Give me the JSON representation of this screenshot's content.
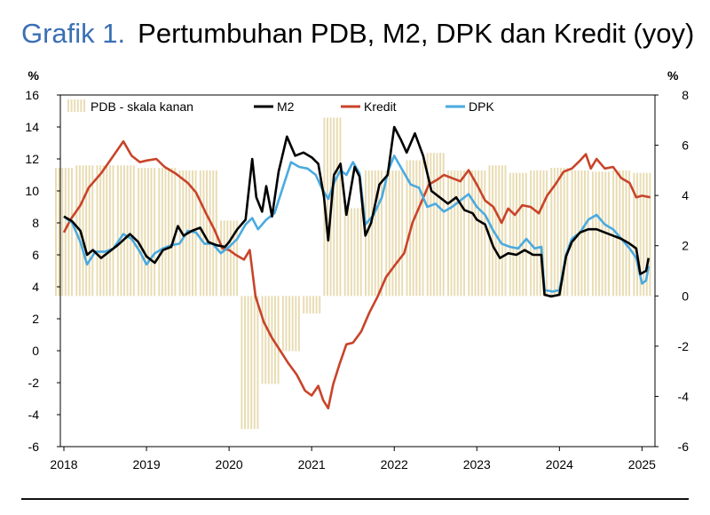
{
  "title_number": "Grafik 1.",
  "title_text": "Pertumbuhan PDB, M2, DPK dan Kredit (yoy)",
  "colors": {
    "gdp": "#e9dcb4",
    "m2": "#000000",
    "kredit": "#c8442a",
    "dpk": "#4aaadf",
    "title_num": "#3a6fb4"
  },
  "chart_data": {
    "type": "line",
    "left_axis": {
      "unit": "%",
      "min": -6,
      "max": 16,
      "ticks": [
        "16",
        "14",
        "12",
        "10",
        "8",
        "6",
        "4",
        "2",
        "0",
        "-2",
        "-4",
        "-6"
      ]
    },
    "right_axis": {
      "unit": "%",
      "min": -6,
      "max": 8,
      "ticks": [
        "8",
        "6",
        "4",
        "2",
        "0",
        "-2",
        "-4",
        "-6"
      ]
    },
    "x_axis": {
      "labels": [
        "2018",
        "2019",
        "2020",
        "2021",
        "2022",
        "2023",
        "2024",
        "2025"
      ],
      "min": 2018.0,
      "max": 2025.2
    },
    "legend": [
      {
        "key": "gdp",
        "label": "PDB - skala kanan"
      },
      {
        "key": "m2",
        "label": "M2"
      },
      {
        "key": "kredit",
        "label": "Kredit"
      },
      {
        "key": "dpk",
        "label": "DPK"
      }
    ],
    "series": [
      {
        "name": "M2",
        "key": "m2",
        "axis": "left",
        "points": [
          [
            2018.0,
            8.4
          ],
          [
            2018.1,
            8.1
          ],
          [
            2018.2,
            7.5
          ],
          [
            2018.28,
            6.0
          ],
          [
            2018.35,
            6.3
          ],
          [
            2018.45,
            5.8
          ],
          [
            2018.55,
            6.2
          ],
          [
            2018.65,
            6.6
          ],
          [
            2018.8,
            7.3
          ],
          [
            2018.9,
            6.8
          ],
          [
            2019.0,
            5.9
          ],
          [
            2019.1,
            5.5
          ],
          [
            2019.2,
            6.3
          ],
          [
            2019.3,
            6.5
          ],
          [
            2019.38,
            7.8
          ],
          [
            2019.45,
            7.2
          ],
          [
            2019.55,
            7.5
          ],
          [
            2019.65,
            7.7
          ],
          [
            2019.75,
            6.8
          ],
          [
            2019.85,
            6.6
          ],
          [
            2019.95,
            6.5
          ],
          [
            2020.0,
            6.8
          ],
          [
            2020.1,
            7.6
          ],
          [
            2020.2,
            8.2
          ],
          [
            2020.28,
            12.0
          ],
          [
            2020.33,
            9.6
          ],
          [
            2020.4,
            8.7
          ],
          [
            2020.45,
            10.3
          ],
          [
            2020.52,
            8.4
          ],
          [
            2020.6,
            11.2
          ],
          [
            2020.7,
            13.4
          ],
          [
            2020.8,
            12.2
          ],
          [
            2020.9,
            12.4
          ],
          [
            2021.0,
            12.1
          ],
          [
            2021.08,
            11.7
          ],
          [
            2021.15,
            9.6
          ],
          [
            2021.2,
            6.9
          ],
          [
            2021.27,
            11.0
          ],
          [
            2021.35,
            11.7
          ],
          [
            2021.42,
            8.5
          ],
          [
            2021.52,
            11.5
          ],
          [
            2021.58,
            10.9
          ],
          [
            2021.65,
            7.2
          ],
          [
            2021.72,
            8.0
          ],
          [
            2021.82,
            10.4
          ],
          [
            2021.92,
            11.0
          ],
          [
            2022.0,
            14.0
          ],
          [
            2022.08,
            13.2
          ],
          [
            2022.15,
            12.4
          ],
          [
            2022.25,
            13.6
          ],
          [
            2022.35,
            12.2
          ],
          [
            2022.45,
            10.0
          ],
          [
            2022.55,
            9.6
          ],
          [
            2022.65,
            9.2
          ],
          [
            2022.75,
            9.6
          ],
          [
            2022.85,
            8.8
          ],
          [
            2022.95,
            8.6
          ],
          [
            2023.0,
            8.2
          ],
          [
            2023.1,
            7.9
          ],
          [
            2023.2,
            6.5
          ],
          [
            2023.28,
            5.8
          ],
          [
            2023.38,
            6.1
          ],
          [
            2023.48,
            6.0
          ],
          [
            2023.58,
            6.3
          ],
          [
            2023.68,
            6.0
          ],
          [
            2023.78,
            6.0
          ],
          [
            2023.82,
            3.5
          ],
          [
            2023.9,
            3.4
          ],
          [
            2024.0,
            3.5
          ],
          [
            2024.08,
            5.9
          ],
          [
            2024.15,
            6.8
          ],
          [
            2024.25,
            7.4
          ],
          [
            2024.35,
            7.6
          ],
          [
            2024.45,
            7.6
          ],
          [
            2024.55,
            7.4
          ],
          [
            2024.65,
            7.2
          ],
          [
            2024.75,
            7.0
          ],
          [
            2024.85,
            6.7
          ],
          [
            2024.93,
            6.4
          ],
          [
            2024.98,
            4.8
          ],
          [
            2025.05,
            5.0
          ],
          [
            2025.08,
            5.8
          ]
        ]
      },
      {
        "name": "Kredit",
        "key": "kredit",
        "axis": "left",
        "points": [
          [
            2018.0,
            7.4
          ],
          [
            2018.08,
            8.2
          ],
          [
            2018.2,
            9.1
          ],
          [
            2018.3,
            10.2
          ],
          [
            2018.45,
            11.1
          ],
          [
            2018.6,
            12.2
          ],
          [
            2018.72,
            13.1
          ],
          [
            2018.82,
            12.2
          ],
          [
            2018.92,
            11.8
          ],
          [
            2019.0,
            11.9
          ],
          [
            2019.12,
            12.0
          ],
          [
            2019.22,
            11.5
          ],
          [
            2019.35,
            11.1
          ],
          [
            2019.5,
            10.5
          ],
          [
            2019.6,
            9.9
          ],
          [
            2019.72,
            8.6
          ],
          [
            2019.82,
            7.6
          ],
          [
            2019.92,
            6.4
          ],
          [
            2020.0,
            6.3
          ],
          [
            2020.08,
            6.0
          ],
          [
            2020.18,
            5.7
          ],
          [
            2020.25,
            6.3
          ],
          [
            2020.32,
            3.4
          ],
          [
            2020.42,
            1.8
          ],
          [
            2020.52,
            0.8
          ],
          [
            2020.62,
            0.0
          ],
          [
            2020.72,
            -0.8
          ],
          [
            2020.82,
            -1.5
          ],
          [
            2020.92,
            -2.5
          ],
          [
            2021.0,
            -2.8
          ],
          [
            2021.08,
            -2.2
          ],
          [
            2021.14,
            -3.1
          ],
          [
            2021.2,
            -3.6
          ],
          [
            2021.26,
            -2.1
          ],
          [
            2021.34,
            -0.8
          ],
          [
            2021.42,
            0.4
          ],
          [
            2021.5,
            0.5
          ],
          [
            2021.6,
            1.2
          ],
          [
            2021.7,
            2.4
          ],
          [
            2021.8,
            3.4
          ],
          [
            2021.9,
            4.6
          ],
          [
            2022.0,
            5.3
          ],
          [
            2022.12,
            6.1
          ],
          [
            2022.22,
            8.0
          ],
          [
            2022.32,
            9.2
          ],
          [
            2022.42,
            10.4
          ],
          [
            2022.52,
            10.7
          ],
          [
            2022.6,
            11.0
          ],
          [
            2022.7,
            10.8
          ],
          [
            2022.8,
            10.6
          ],
          [
            2022.9,
            11.3
          ],
          [
            2023.0,
            10.4
          ],
          [
            2023.1,
            9.4
          ],
          [
            2023.2,
            9.0
          ],
          [
            2023.3,
            8.0
          ],
          [
            2023.38,
            8.9
          ],
          [
            2023.46,
            8.5
          ],
          [
            2023.55,
            9.1
          ],
          [
            2023.65,
            9.0
          ],
          [
            2023.75,
            8.6
          ],
          [
            2023.85,
            9.7
          ],
          [
            2023.95,
            10.4
          ],
          [
            2024.05,
            11.2
          ],
          [
            2024.15,
            11.4
          ],
          [
            2024.25,
            11.9
          ],
          [
            2024.32,
            12.3
          ],
          [
            2024.38,
            11.4
          ],
          [
            2024.45,
            12.0
          ],
          [
            2024.55,
            11.4
          ],
          [
            2024.65,
            11.5
          ],
          [
            2024.75,
            10.8
          ],
          [
            2024.85,
            10.5
          ],
          [
            2024.93,
            9.6
          ],
          [
            2025.0,
            9.7
          ],
          [
            2025.1,
            9.6
          ]
        ]
      },
      {
        "name": "DPK",
        "key": "dpk",
        "axis": "left",
        "points": [
          [
            2018.0,
            8.4
          ],
          [
            2018.1,
            8.0
          ],
          [
            2018.2,
            6.8
          ],
          [
            2018.28,
            5.4
          ],
          [
            2018.38,
            6.2
          ],
          [
            2018.5,
            6.2
          ],
          [
            2018.6,
            6.4
          ],
          [
            2018.72,
            7.3
          ],
          [
            2018.82,
            7.0
          ],
          [
            2018.92,
            6.2
          ],
          [
            2019.0,
            5.4
          ],
          [
            2019.1,
            6.1
          ],
          [
            2019.2,
            6.4
          ],
          [
            2019.3,
            6.6
          ],
          [
            2019.4,
            6.7
          ],
          [
            2019.5,
            7.5
          ],
          [
            2019.6,
            7.4
          ],
          [
            2019.7,
            6.7
          ],
          [
            2019.8,
            6.7
          ],
          [
            2019.9,
            6.1
          ],
          [
            2020.0,
            6.5
          ],
          [
            2020.1,
            7.0
          ],
          [
            2020.2,
            7.9
          ],
          [
            2020.28,
            8.3
          ],
          [
            2020.35,
            7.6
          ],
          [
            2020.45,
            8.2
          ],
          [
            2020.55,
            8.6
          ],
          [
            2020.65,
            10.2
          ],
          [
            2020.75,
            11.8
          ],
          [
            2020.85,
            11.5
          ],
          [
            2020.95,
            11.4
          ],
          [
            2021.05,
            11.0
          ],
          [
            2021.12,
            10.2
          ],
          [
            2021.2,
            9.5
          ],
          [
            2021.28,
            10.6
          ],
          [
            2021.35,
            11.3
          ],
          [
            2021.42,
            11.0
          ],
          [
            2021.5,
            11.8
          ],
          [
            2021.58,
            11.1
          ],
          [
            2021.65,
            7.9
          ],
          [
            2021.75,
            8.5
          ],
          [
            2021.85,
            9.6
          ],
          [
            2021.93,
            11.3
          ],
          [
            2022.0,
            12.2
          ],
          [
            2022.1,
            11.3
          ],
          [
            2022.2,
            10.4
          ],
          [
            2022.3,
            10.2
          ],
          [
            2022.4,
            9.0
          ],
          [
            2022.5,
            9.2
          ],
          [
            2022.6,
            8.7
          ],
          [
            2022.7,
            9.0
          ],
          [
            2022.8,
            9.4
          ],
          [
            2022.9,
            9.8
          ],
          [
            2023.0,
            9.0
          ],
          [
            2023.1,
            8.5
          ],
          [
            2023.2,
            7.5
          ],
          [
            2023.3,
            6.7
          ],
          [
            2023.4,
            6.5
          ],
          [
            2023.5,
            6.4
          ],
          [
            2023.6,
            7.0
          ],
          [
            2023.7,
            6.4
          ],
          [
            2023.78,
            6.5
          ],
          [
            2023.82,
            3.8
          ],
          [
            2023.92,
            3.7
          ],
          [
            2024.0,
            3.8
          ],
          [
            2024.08,
            6.0
          ],
          [
            2024.15,
            7.0
          ],
          [
            2024.25,
            7.4
          ],
          [
            2024.35,
            8.2
          ],
          [
            2024.45,
            8.5
          ],
          [
            2024.55,
            7.9
          ],
          [
            2024.65,
            7.6
          ],
          [
            2024.75,
            7.0
          ],
          [
            2024.85,
            6.4
          ],
          [
            2024.93,
            5.8
          ],
          [
            2025.0,
            4.2
          ],
          [
            2025.05,
            4.4
          ],
          [
            2025.08,
            5.3
          ]
        ]
      },
      {
        "name": "PDB - skala kanan",
        "key": "gdp",
        "axis": "right",
        "type": "bar",
        "points": [
          [
            2018.0,
            5.1
          ],
          [
            2018.25,
            5.2
          ],
          [
            2018.5,
            5.2
          ],
          [
            2018.75,
            5.2
          ],
          [
            2019.0,
            5.1
          ],
          [
            2019.25,
            5.1
          ],
          [
            2019.5,
            5.0
          ],
          [
            2019.75,
            5.0
          ],
          [
            2020.0,
            3.0
          ],
          [
            2020.25,
            -5.3
          ],
          [
            2020.5,
            -3.5
          ],
          [
            2020.75,
            -2.2
          ],
          [
            2021.0,
            -0.7
          ],
          [
            2021.25,
            7.1
          ],
          [
            2021.5,
            3.5
          ],
          [
            2021.75,
            5.0
          ],
          [
            2022.0,
            5.0
          ],
          [
            2022.25,
            5.4
          ],
          [
            2022.5,
            5.7
          ],
          [
            2022.75,
            5.0
          ],
          [
            2023.0,
            5.0
          ],
          [
            2023.25,
            5.2
          ],
          [
            2023.5,
            4.9
          ],
          [
            2023.75,
            5.0
          ],
          [
            2024.0,
            5.1
          ],
          [
            2024.25,
            5.0
          ],
          [
            2024.5,
            4.95
          ],
          [
            2024.75,
            5.0
          ],
          [
            2025.0,
            4.9
          ]
        ]
      }
    ]
  }
}
